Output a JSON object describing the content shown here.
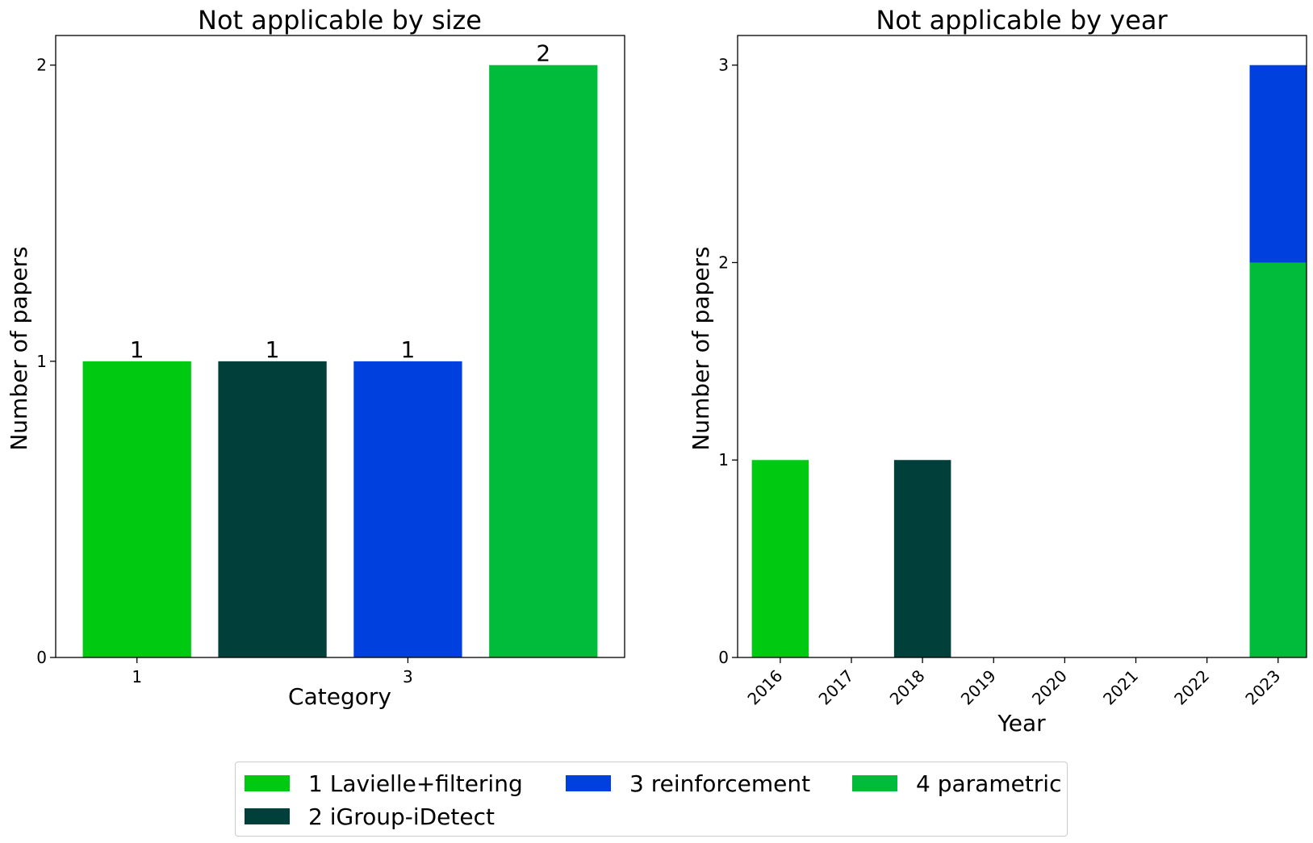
{
  "chart_data": [
    {
      "type": "bar",
      "title": "Not applicable by size",
      "xlabel": "Category",
      "ylabel": "Number of papers",
      "categories": [
        "1",
        "2",
        "3",
        "4"
      ],
      "x_tick_labels": [
        "1",
        "3"
      ],
      "values": [
        1,
        1,
        1,
        2
      ],
      "data_labels": [
        "1",
        "1",
        "1",
        "2"
      ],
      "colors": [
        "#00c912",
        "#003f3a",
        "#0040de",
        "#00bc3a"
      ],
      "ylim": [
        0,
        2.1
      ],
      "yticks": [
        0,
        1,
        2
      ],
      "grid": false
    },
    {
      "type": "bar",
      "stacked": true,
      "title": "Not applicable by year",
      "xlabel": "Year",
      "ylabel": "Number of papers",
      "categories": [
        "2016",
        "2017",
        "2018",
        "2019",
        "2020",
        "2021",
        "2022",
        "2023"
      ],
      "series": [
        {
          "name": "1 Lavielle+filtering",
          "color": "#00c912",
          "values": [
            1,
            0,
            0,
            0,
            0,
            0,
            0,
            0
          ]
        },
        {
          "name": "2 iGroup-iDetect",
          "color": "#003f3a",
          "values": [
            0,
            0,
            1,
            0,
            0,
            0,
            0,
            0
          ]
        },
        {
          "name": "4 parametric",
          "color": "#00bc3a",
          "values": [
            0,
            0,
            0,
            0,
            0,
            0,
            0,
            2
          ]
        },
        {
          "name": "3 reinforcement",
          "color": "#0040de",
          "values": [
            0,
            0,
            0,
            0,
            0,
            0,
            0,
            1
          ]
        }
      ],
      "ylim": [
        0,
        3.15
      ],
      "yticks": [
        0,
        1,
        2,
        3
      ],
      "grid": false
    }
  ],
  "legend": {
    "placement": "bottom-center",
    "items": [
      {
        "label": "1 Lavielle+filtering",
        "color": "#00c912"
      },
      {
        "label": "2 iGroup-iDetect",
        "color": "#003f3a"
      },
      {
        "label": "3 reinforcement",
        "color": "#0040de"
      },
      {
        "label": "4 parametric",
        "color": "#00bc3a"
      }
    ]
  }
}
